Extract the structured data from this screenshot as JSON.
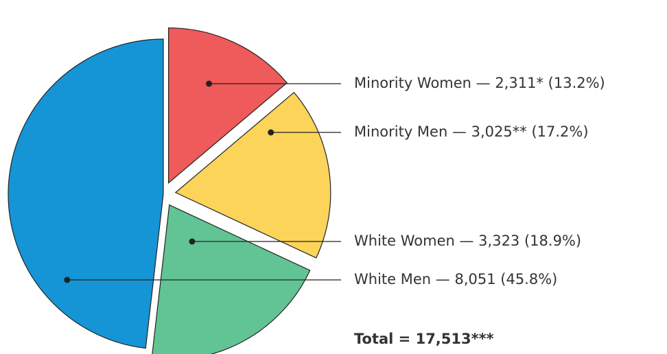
{
  "chart_data": {
    "type": "pie",
    "categories": [
      "Minority Women",
      "Minority Men",
      "White Women",
      "White Men"
    ],
    "values": [
      2311,
      3025,
      3323,
      8051
    ],
    "value_labels": [
      "— 2,311*",
      "— 3,025**",
      "— 3,323",
      "— 8,051"
    ],
    "percent_labels": [
      "(13.2%)",
      "(17.2%)",
      "(18.9%)",
      "(45.8%)"
    ],
    "colors": [
      "#ef5a5a",
      "#fcd45a",
      "#62c395",
      "#1595d6"
    ],
    "annotation": "Total = 17,513***"
  }
}
